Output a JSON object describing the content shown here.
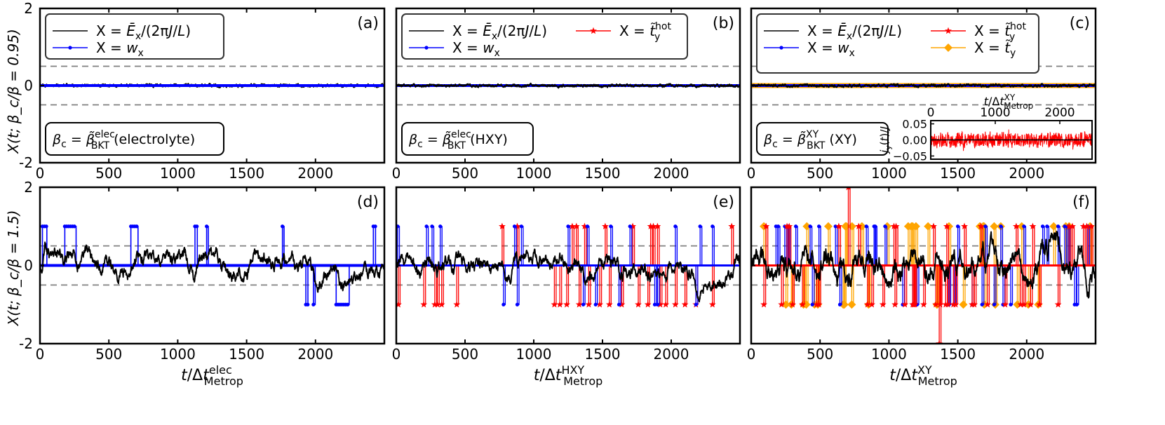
{
  "figure": {
    "ylabel_top": "X(t; β_c/β = 0.95)",
    "ylabel_bottom": "X(t; β_c/β = 1.5)"
  },
  "colors": {
    "ex": "#000000",
    "w": "#0000ff",
    "thot": "#ff0000",
    "ty": "#ffa500",
    "dash": "#808080"
  },
  "chart_data": [
    {
      "id": "a",
      "panel_label": "(a)",
      "type": "line",
      "temperature_ratio": 0.95,
      "x_range": [
        0,
        2500
      ],
      "y_range": [
        -2,
        2
      ],
      "x_ticks": [
        0,
        500,
        1000,
        1500,
        2000
      ],
      "y_ticks": [
        -2,
        0,
        2
      ],
      "xlabel": "",
      "dashed_lines": [
        0.5,
        -0.5
      ],
      "legend": [
        {
          "key": "ex",
          "text": "X = Ē_x/(2πJ/L)"
        },
        {
          "key": "w",
          "text": "X = w_x"
        }
      ],
      "beta_box": {
        "lhs": "β_c = ",
        "beta": "β̃",
        "sup": "elec",
        "sub": "BKT",
        "tail": " (electrolyte)"
      },
      "series": [
        {
          "name": "Ē_x/(2πJ/L)",
          "key": "ex",
          "pattern": "low_noise",
          "amplitude": 0.05
        },
        {
          "name": "w_x",
          "key": "w",
          "pattern": "constant",
          "value": 0
        }
      ]
    },
    {
      "id": "b",
      "panel_label": "(b)",
      "type": "line",
      "temperature_ratio": 0.95,
      "x_range": [
        0,
        2500
      ],
      "y_range": [
        -2,
        2
      ],
      "x_ticks": [
        0,
        500,
        1000,
        1500,
        2000
      ],
      "y_ticks": [
        -2,
        0,
        2
      ],
      "xlabel": "",
      "dashed_lines": [
        0.5,
        -0.5
      ],
      "legend": [
        {
          "key": "ex",
          "text": "X = Ē_x/(2πJ/L)"
        },
        {
          "key": "thot",
          "text": "X = t̃_y^hot"
        },
        {
          "key": "w",
          "text": "X = w_x"
        }
      ],
      "beta_box": {
        "lhs": "β_c = ",
        "beta": "β̃",
        "sup": "elec",
        "sub": "BKT",
        "tail": " (HXY)"
      },
      "series": [
        {
          "name": "t̃_y^hot",
          "key": "thot",
          "pattern": "constant",
          "value": 0
        },
        {
          "name": "w_x",
          "key": "w",
          "pattern": "constant",
          "value": 0
        },
        {
          "name": "Ē_x/(2πJ/L)",
          "key": "ex",
          "pattern": "low_noise",
          "amplitude": 0.05
        }
      ]
    },
    {
      "id": "c",
      "panel_label": "(c)",
      "type": "line",
      "temperature_ratio": 0.95,
      "x_range": [
        0,
        2500
      ],
      "y_range": [
        -2,
        2
      ],
      "x_ticks": [
        0,
        500,
        1000,
        1500,
        2000
      ],
      "y_ticks": [
        -2,
        0,
        2
      ],
      "xlabel": "",
      "dashed_lines": [
        0.5,
        -0.5
      ],
      "legend": [
        {
          "key": "ex",
          "text": "X = Ē_x/(2πJ/L)"
        },
        {
          "key": "thot",
          "text": "X = t̃_y^hot"
        },
        {
          "key": "w",
          "text": "X = w_x"
        },
        {
          "key": "ty",
          "text": "X = t̃_y"
        }
      ],
      "beta_box": {
        "lhs": "β_c = ",
        "beta": "β̃",
        "sup": "XY",
        "sub": "BKT",
        "tail": " (XY)"
      },
      "series": [
        {
          "name": "t̃_y",
          "key": "ty",
          "pattern": "constant",
          "value": 0
        },
        {
          "name": "t̃_y^hot",
          "key": "thot",
          "pattern": "constant",
          "value": 0
        },
        {
          "name": "w_x",
          "key": "w",
          "pattern": "constant",
          "value": 0
        },
        {
          "name": "Ē_x/(2πJ/L)",
          "key": "ex",
          "pattern": "low_noise",
          "amplitude": 0.05
        }
      ],
      "inset": {
        "x_range": [
          0,
          2500
        ],
        "y_range": [
          -0.06,
          0.06
        ],
        "x_ticks": [
          0,
          1000,
          2000
        ],
        "y_ticks": [
          0.05,
          0.0,
          -0.05
        ],
        "y_tick_labels": [
          "0.05",
          "0.00",
          "−0.05"
        ],
        "xlabel": "t/Δt_Metrop^XY",
        "ylabel": "j_y(t)/J",
        "series": [
          {
            "name": "j_y(t)/J",
            "key": "thot",
            "pattern": "noise",
            "amplitude": 0.022
          },
          {
            "name": "zero",
            "key": "ex",
            "pattern": "constant",
            "value": 0
          }
        ]
      }
    },
    {
      "id": "d",
      "panel_label": "(d)",
      "type": "line",
      "temperature_ratio": 1.5,
      "x_range": [
        0,
        2500
      ],
      "y_range": [
        -2,
        2
      ],
      "x_ticks": [
        0,
        500,
        1000,
        1500,
        2000
      ],
      "y_ticks": [
        -2,
        0,
        2
      ],
      "xlabel": "t/Δt_Metrop^elec",
      "dashed_lines": [
        0.5,
        -0.5
      ],
      "series": [
        {
          "name": "w_x",
          "key": "w",
          "pattern": "steps",
          "marker": "dot",
          "segments": [
            [
              0,
              18,
              0
            ],
            [
              18,
              50,
              1
            ],
            [
              50,
              180,
              0
            ],
            [
              180,
              262,
              1
            ],
            [
              262,
              660,
              0
            ],
            [
              660,
              712,
              1
            ],
            [
              712,
              1125,
              0
            ],
            [
              1125,
              1142,
              1
            ],
            [
              1142,
              1210,
              0
            ],
            [
              1210,
              1222,
              1
            ],
            [
              1222,
              1760,
              0
            ],
            [
              1760,
              1772,
              1
            ],
            [
              1772,
              1930,
              0
            ],
            [
              1930,
              1945,
              -1
            ],
            [
              1945,
              1985,
              0
            ],
            [
              1985,
              1998,
              -1
            ],
            [
              1998,
              2150,
              0
            ],
            [
              2150,
              2245,
              -1
            ],
            [
              2245,
              2420,
              0
            ],
            [
              2420,
              2436,
              1
            ],
            [
              2436,
              2500,
              0
            ]
          ]
        },
        {
          "name": "Ē_x/(2πJ/L)",
          "key": "ex",
          "pattern": "walk",
          "amplitude": 0.12,
          "follow": "w_x",
          "follow_factor": 0.55
        }
      ]
    },
    {
      "id": "e",
      "panel_label": "(e)",
      "type": "line",
      "temperature_ratio": 1.5,
      "x_range": [
        0,
        2500
      ],
      "y_range": [
        -2,
        2
      ],
      "x_ticks": [
        0,
        500,
        1000,
        1500,
        2000
      ],
      "y_ticks": [
        -2,
        0,
        2
      ],
      "xlabel": "t/Δt_Metrop^HXY",
      "dashed_lines": [
        0.5,
        -0.5
      ],
      "series": [
        {
          "name": "t̃_y^hot",
          "key": "thot",
          "pattern": "spikes",
          "marker": "star",
          "events": [
            [
              15,
              -1
            ],
            [
              200,
              -1
            ],
            [
              280,
              -1
            ],
            [
              300,
              -1
            ],
            [
              330,
              -1
            ],
            [
              440,
              -1
            ],
            [
              770,
              1
            ],
            [
              880,
              1
            ],
            [
              1150,
              -1
            ],
            [
              1190,
              -1
            ],
            [
              1240,
              -1
            ],
            [
              1280,
              1
            ],
            [
              1310,
              1
            ],
            [
              1330,
              -1
            ],
            [
              1370,
              1
            ],
            [
              1400,
              -1
            ],
            [
              1480,
              -1
            ],
            [
              1520,
              1
            ],
            [
              1550,
              -1
            ],
            [
              1640,
              -1
            ],
            [
              1720,
              1
            ],
            [
              1760,
              -1
            ],
            [
              1830,
              -1
            ],
            [
              1850,
              1
            ],
            [
              1870,
              1
            ],
            [
              1900,
              1
            ],
            [
              1920,
              -1
            ],
            [
              1960,
              -1
            ],
            [
              2030,
              -1
            ],
            [
              2100,
              -1
            ],
            [
              2180,
              -1
            ],
            [
              2300,
              -1
            ],
            [
              2440,
              1
            ]
          ]
        },
        {
          "name": "w_x",
          "key": "w",
          "pattern": "spikes",
          "marker": "dot",
          "events": [
            [
              10,
              1
            ],
            [
              220,
              1
            ],
            [
              260,
              1
            ],
            [
              320,
              1
            ],
            [
              780,
              -1
            ],
            [
              860,
              1
            ],
            [
              880,
              -1
            ],
            [
              910,
              1
            ],
            [
              1250,
              1
            ],
            [
              1360,
              -1
            ],
            [
              1390,
              1
            ],
            [
              1450,
              -1
            ],
            [
              1560,
              1
            ],
            [
              1620,
              -1
            ],
            [
              1700,
              1
            ],
            [
              1880,
              -1
            ],
            [
              1900,
              -1
            ],
            [
              2030,
              1
            ],
            [
              2180,
              -1
            ],
            [
              2210,
              1
            ],
            [
              2300,
              1
            ]
          ]
        },
        {
          "name": "Ē_x/(2πJ/L)",
          "key": "ex",
          "pattern": "walk",
          "amplitude": 0.12,
          "follow": "w_x",
          "follow_factor": 0.35
        }
      ]
    },
    {
      "id": "f",
      "panel_label": "(f)",
      "type": "line",
      "temperature_ratio": 1.5,
      "x_range": [
        0,
        2500
      ],
      "y_range": [
        -2,
        2
      ],
      "x_ticks": [
        0,
        500,
        1000,
        1500,
        2000
      ],
      "y_ticks": [
        -2,
        0,
        2
      ],
      "xlabel": "t/Δt_Metrop^XY",
      "dashed_lines": [
        0.5,
        -0.5
      ],
      "series": [
        {
          "name": "t̃_y",
          "key": "ty",
          "pattern": "dense",
          "marker": "diamond",
          "density": 0.11,
          "seed": 13,
          "extra_events": [
            [
              400,
              -1
            ],
            [
              460,
              -1
            ],
            [
              560,
              1
            ],
            [
              730,
              -1
            ],
            [
              1350,
              -1
            ],
            [
              1540,
              -1
            ],
            [
              1690,
              1
            ],
            [
              2460,
              1
            ]
          ]
        },
        {
          "name": "w_x",
          "key": "w",
          "pattern": "dense",
          "marker": "dot",
          "density": 0.1,
          "seed": 29
        },
        {
          "name": "t̃_y^hot",
          "key": "thot",
          "pattern": "dense",
          "marker": "star",
          "density": 0.16,
          "seed": 7,
          "extra_events": [
            [
              705,
              2
            ],
            [
              1365,
              -2
            ]
          ]
        },
        {
          "name": "Ē_x/(2πJ/L)",
          "key": "ex",
          "pattern": "walk",
          "amplitude": 0.18,
          "follow": "none",
          "follow_factor": 0
        }
      ]
    }
  ]
}
